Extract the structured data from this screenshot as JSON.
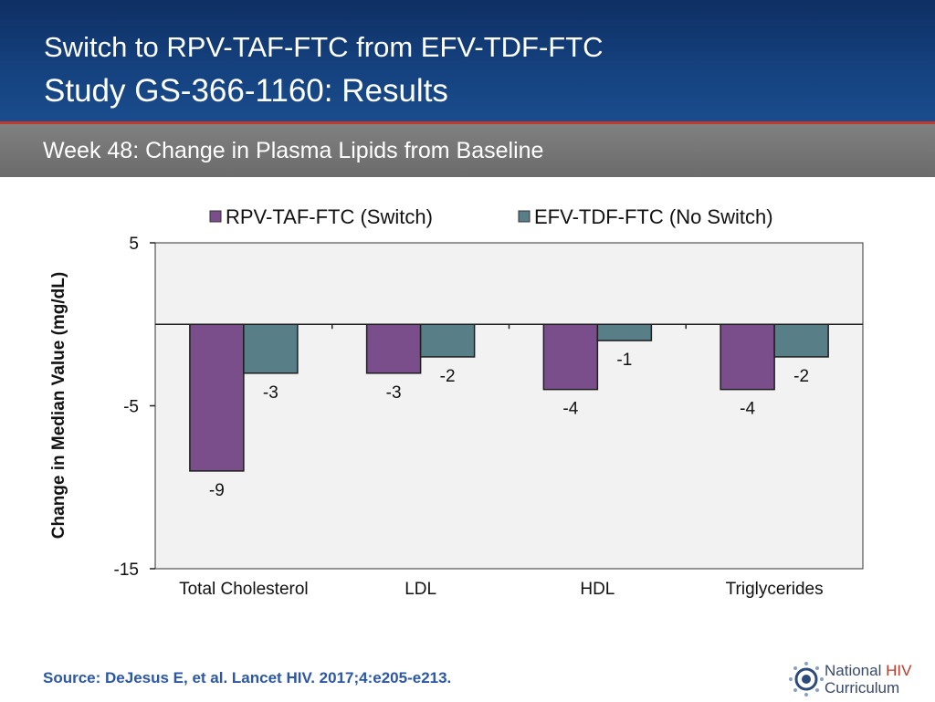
{
  "header": {
    "title_line1": "Switch to RPV-TAF-FTC from EFV-TDF-FTC",
    "title_line2": "Study GS-366-1160: Results"
  },
  "subtitle": "Week 48: Change in Plasma Lipids from Baseline",
  "chart_data": {
    "type": "bar",
    "title": "",
    "xlabel": "",
    "ylabel": "Change in Median Value (mg/dL)",
    "ylim": [
      -15,
      5
    ],
    "yticks": [
      5,
      -5,
      -15
    ],
    "categories": [
      "Total Cholesterol",
      "LDL",
      "HDL",
      "Triglycerides"
    ],
    "series": [
      {
        "name": "RPV-TAF-FTC (Switch)",
        "values": [
          -9,
          -3,
          -4,
          -4
        ],
        "labels": [
          "-9",
          "-3",
          "-4",
          "-4"
        ],
        "color": "#7a4e8a"
      },
      {
        "name": "EFV-TDF-FTC (No Switch)",
        "values": [
          -3,
          -2,
          -1,
          -2
        ],
        "labels": [
          "-3",
          "-2",
          "-1",
          "-2"
        ],
        "color": "#587e88"
      }
    ],
    "legend_position": "top",
    "grid": false
  },
  "source": "Source: DeJesus E, et al. Lancet HIV. 2017;4:e205-e213.",
  "logo": {
    "line1_a": "National ",
    "line1_b": "HIV",
    "line2": "Curriculum"
  }
}
